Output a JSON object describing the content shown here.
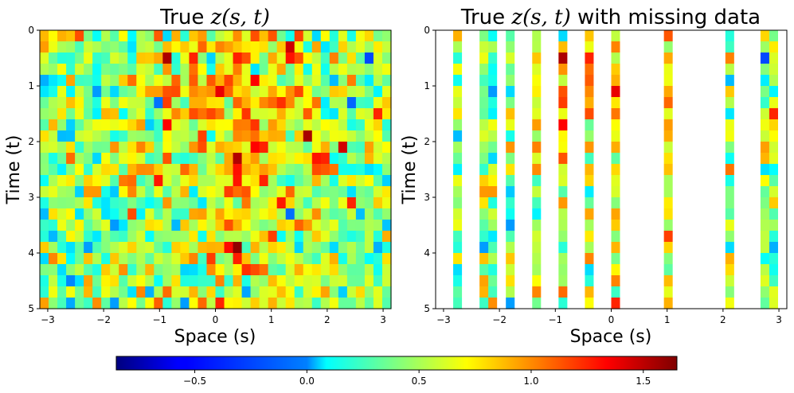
{
  "chart_data": [
    {
      "type": "heatmap",
      "title_prefix": "True",
      "title_math": "z(s, t)",
      "title_suffix": "",
      "xlabel": "Space (s)",
      "ylabel": "Time (t)",
      "xlim": [
        -3.14159,
        3.14159
      ],
      "ylim": [
        5,
        0
      ],
      "xticks": [
        -3,
        -2,
        -1,
        0,
        1,
        2,
        3
      ],
      "xtick_labels": [
        "−3",
        "−2",
        "−1",
        "0",
        "1",
        "2",
        "3"
      ],
      "yticks": [
        0,
        1,
        2,
        3,
        4,
        5
      ],
      "ytick_labels": [
        "0",
        "1",
        "2",
        "3",
        "4",
        "5"
      ],
      "grid_cols": 40,
      "grid_rows": 25,
      "seed": 7,
      "missing_columns": []
    },
    {
      "type": "heatmap",
      "title_prefix": "True",
      "title_math": "z(s, t)",
      "title_suffix": "with missing data",
      "xlabel": "Space (s)",
      "ylabel": "Time (t)",
      "xlim": [
        -3.14159,
        3.14159
      ],
      "ylim": [
        5,
        0
      ],
      "xticks": [
        -3,
        -2,
        -1,
        0,
        1,
        2,
        3
      ],
      "xtick_labels": [
        "−3",
        "−2",
        "−1",
        "0",
        "1",
        "2",
        "3"
      ],
      "yticks": [
        0,
        1,
        2,
        3,
        4,
        5
      ],
      "ytick_labels": [
        "0",
        "1",
        "2",
        "3",
        "4",
        "5"
      ],
      "grid_cols": 40,
      "grid_rows": 25,
      "seed": 7,
      "missing_columns": [
        0,
        1,
        3,
        4,
        7,
        9,
        10,
        12,
        13,
        15,
        16,
        18,
        19,
        21,
        22,
        23,
        24,
        25,
        27,
        28,
        29,
        30,
        31,
        32,
        34,
        35,
        36,
        39
      ]
    }
  ],
  "colorbar": {
    "colormap": "jet",
    "vmin": -0.85,
    "vmax": 1.65,
    "ticks": [
      -0.5,
      0.0,
      0.5,
      1.0,
      1.5
    ],
    "tick_labels": [
      "−0.5",
      "0.0",
      "0.5",
      "1.0",
      "1.5"
    ]
  }
}
